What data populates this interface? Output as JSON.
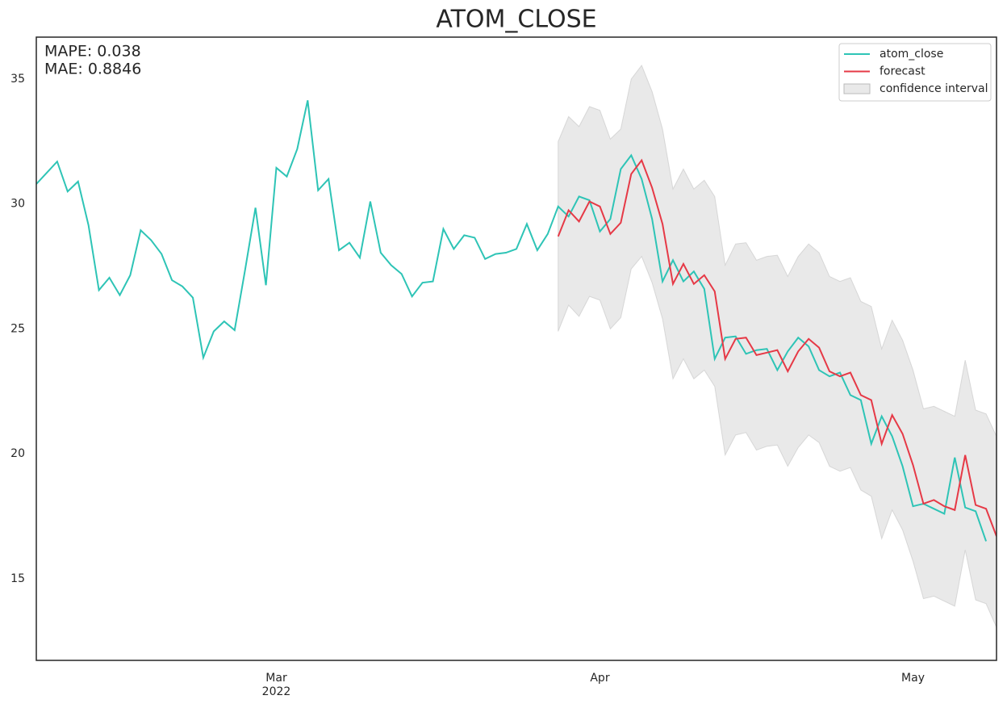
{
  "chart_data": {
    "type": "line",
    "title": "ATOM_CLOSE",
    "annotations": [
      "MAPE: 0.038",
      "MAE: 0.8846"
    ],
    "x": [
      37,
      38,
      39,
      40,
      41,
      42,
      43,
      44,
      45,
      46,
      47,
      48,
      49,
      50,
      51,
      52,
      53,
      54,
      55,
      56,
      57,
      58,
      59,
      60,
      61,
      62,
      63,
      64,
      65,
      66,
      67,
      68,
      69,
      70,
      71,
      72,
      73,
      74,
      75,
      76,
      77,
      78,
      79,
      80,
      81,
      82,
      83,
      84,
      85,
      86,
      87,
      88,
      89,
      90,
      91,
      92,
      93,
      94,
      95,
      96,
      97,
      98,
      99,
      100,
      101,
      102,
      103,
      104,
      105,
      106,
      107,
      108,
      109,
      110,
      111,
      112,
      113,
      114,
      115,
      116,
      117,
      118,
      119,
      120,
      121,
      122,
      123,
      124,
      125,
      126,
      127,
      128,
      129
    ],
    "xlim": [
      37,
      129
    ],
    "xticks": [
      {
        "value": 60,
        "label": "Mar\n2022"
      },
      {
        "value": 91,
        "label": "Apr"
      },
      {
        "value": 121,
        "label": "May"
      }
    ],
    "ylim": [
      11.73,
      36.68
    ],
    "yticks": [
      15,
      20,
      25,
      30,
      35
    ],
    "grid": false,
    "legend": "upper right",
    "series": [
      {
        "name": "atom_close",
        "color": "#2ec4b6",
        "values": [
          30.8,
          31.25,
          31.7,
          30.5,
          30.9,
          29.15,
          26.55,
          27.05,
          26.35,
          27.15,
          28.95,
          28.55,
          28.0,
          26.95,
          26.7,
          26.25,
          23.85,
          24.9,
          25.3,
          24.95,
          27.35,
          29.85,
          26.75,
          31.45,
          31.1,
          32.2,
          34.15,
          30.55,
          31.0,
          28.15,
          28.45,
          27.85,
          30.1,
          28.05,
          27.55,
          27.2,
          26.3,
          26.85,
          26.9,
          29.0,
          28.2,
          28.75,
          28.65,
          27.8,
          28.0,
          28.05,
          28.2,
          29.2,
          28.15,
          28.8,
          29.9,
          29.5,
          30.3,
          30.15,
          28.9,
          29.4,
          31.4,
          31.95,
          31.0,
          29.4,
          26.9,
          27.75,
          26.9,
          27.3,
          26.6,
          23.8,
          24.65,
          24.7,
          24.0,
          24.15,
          24.2,
          23.35,
          24.1,
          24.65,
          24.3,
          23.35,
          23.1,
          23.25,
          22.35,
          22.15,
          20.4,
          21.5,
          20.7,
          19.5,
          17.9,
          18.0,
          17.8,
          17.6,
          19.85,
          17.85,
          17.7,
          16.5,
          null
        ]
      },
      {
        "name": "forecast",
        "color": "#e63946",
        "values": [
          null,
          null,
          null,
          null,
          null,
          null,
          null,
          null,
          null,
          null,
          null,
          null,
          null,
          null,
          null,
          null,
          null,
          null,
          null,
          null,
          null,
          null,
          null,
          null,
          null,
          null,
          null,
          null,
          null,
          null,
          null,
          null,
          null,
          null,
          null,
          null,
          null,
          null,
          null,
          null,
          null,
          null,
          null,
          null,
          null,
          null,
          null,
          null,
          null,
          null,
          28.7,
          29.75,
          29.3,
          30.1,
          29.9,
          28.8,
          29.25,
          31.2,
          31.75,
          30.65,
          29.2,
          26.8,
          27.6,
          26.8,
          27.15,
          26.5,
          23.8,
          24.6,
          24.65,
          23.95,
          24.05,
          24.15,
          23.3,
          24.1,
          24.6,
          24.25,
          23.3,
          23.1,
          23.25,
          22.35,
          22.15,
          20.4,
          21.55,
          20.8,
          19.55,
          18.0,
          18.15,
          17.9,
          17.75,
          19.95,
          17.95,
          17.8,
          16.7
        ]
      }
    ],
    "band": {
      "name": "confidence interval",
      "color": "#d3d3d3",
      "upper": [
        null,
        null,
        null,
        null,
        null,
        null,
        null,
        null,
        null,
        null,
        null,
        null,
        null,
        null,
        null,
        null,
        null,
        null,
        null,
        null,
        null,
        null,
        null,
        null,
        null,
        null,
        null,
        null,
        null,
        null,
        null,
        null,
        null,
        null,
        null,
        null,
        null,
        null,
        null,
        null,
        null,
        null,
        null,
        null,
        null,
        null,
        null,
        null,
        null,
        null,
        32.5,
        33.5,
        33.1,
        33.9,
        33.75,
        32.6,
        33.0,
        35.0,
        35.55,
        34.5,
        33.0,
        30.6,
        31.4,
        30.6,
        30.95,
        30.3,
        27.55,
        28.4,
        28.45,
        27.75,
        27.9,
        27.95,
        27.1,
        27.9,
        28.4,
        28.05,
        27.1,
        26.9,
        27.05,
        26.1,
        25.9,
        24.2,
        25.35,
        24.55,
        23.35,
        21.8,
        21.9,
        21.7,
        21.5,
        23.75,
        21.75,
        21.6,
        20.7
      ],
      "lower": [
        null,
        null,
        null,
        null,
        null,
        null,
        null,
        null,
        null,
        null,
        null,
        null,
        null,
        null,
        null,
        null,
        null,
        null,
        null,
        null,
        null,
        null,
        null,
        null,
        null,
        null,
        null,
        null,
        null,
        null,
        null,
        null,
        null,
        null,
        null,
        null,
        null,
        null,
        null,
        null,
        null,
        null,
        null,
        null,
        null,
        null,
        null,
        null,
        null,
        null,
        24.9,
        25.95,
        25.5,
        26.3,
        26.15,
        25.0,
        25.45,
        27.4,
        27.9,
        26.85,
        25.4,
        23.0,
        23.8,
        23.0,
        23.35,
        22.7,
        19.95,
        20.75,
        20.85,
        20.15,
        20.3,
        20.35,
        19.5,
        20.25,
        20.75,
        20.45,
        19.5,
        19.3,
        19.45,
        18.55,
        18.3,
        16.6,
        17.75,
        16.95,
        15.7,
        14.2,
        14.3,
        14.1,
        13.9,
        16.15,
        14.15,
        14.0,
        13.05
      ]
    }
  }
}
